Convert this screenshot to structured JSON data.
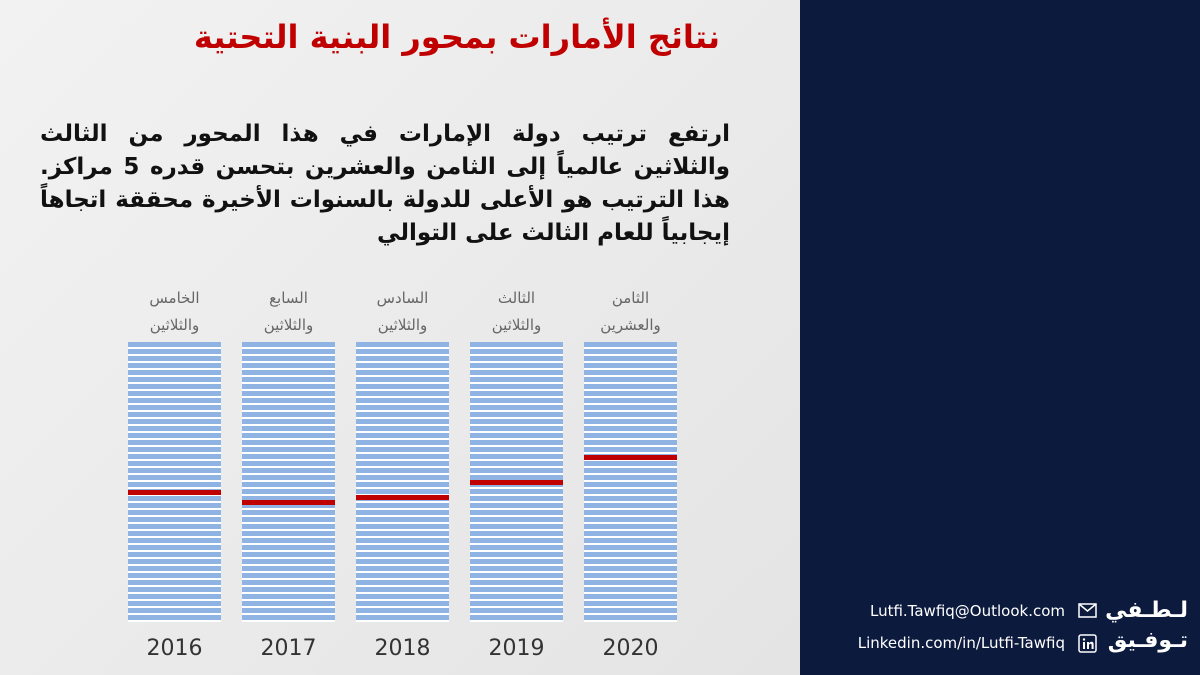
{
  "chart_data": {
    "type": "rank-stripes",
    "title": "نتائج الأمارات بمحور البنية التحتية",
    "subtitle": "ارتفع ترتيب دولة الإمارات في هذا المحور من الثالث والثلاثين عالمياً إلى الثامن والعشرين بتحسن قدره 5 مراكز. هذا الترتيب هو الأعلى للدولة بالسنوات الأخيرة محققة اتجاهاً إيجابياً للعام الثالث على التوالي",
    "categories": [
      "2016",
      "2017",
      "2018",
      "2019",
      "2020"
    ],
    "values": [
      35,
      37,
      36,
      33,
      28
    ],
    "value_labels": [
      "الخامس والثلاثين",
      "السابع والثلاثين",
      "السادس والثلاثين",
      "الثالث والثلاثين",
      "الثامن والعشرين"
    ],
    "ylim": [
      5,
      61
    ],
    "y_reversed": true,
    "color": "#c00000",
    "stripe_color": "#8fb4e3"
  },
  "contact": {
    "email": "Lutfi.Tawfiq@Outlook.com",
    "linkedin": "Linkedin.com/in/Lutfi-Tawfiq"
  },
  "logo": [
    "لـطـفي",
    "تـوفـيق"
  ]
}
